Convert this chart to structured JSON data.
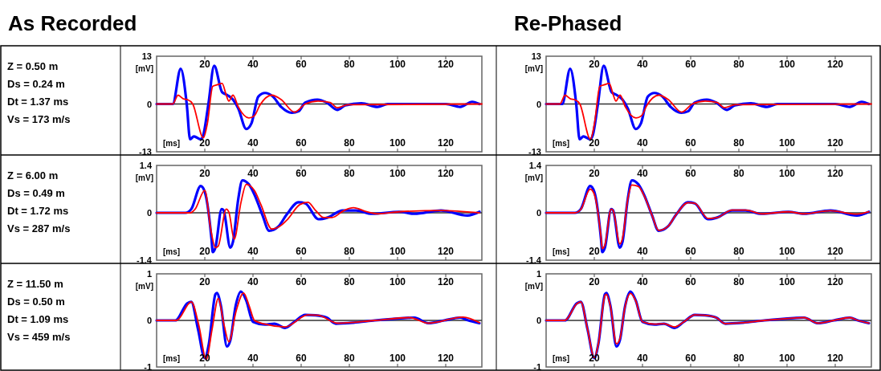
{
  "chart_data": [
    {
      "type": "other",
      "annotations": [
        "Z = 0.50 m",
        "Ds = 0.24 m",
        "Dt = 1.37 ms",
        "Vs = 173 m/s"
      ]
    },
    {
      "type": "line",
      "title": "As Recorded",
      "xlabel": "[ms]",
      "ylabel": "[mV]",
      "xlim": [
        0,
        135
      ],
      "xticks": [
        20,
        40,
        60,
        80,
        100,
        120
      ],
      "x2lim": [
        0,
        135
      ],
      "x2ticks": [
        20,
        40,
        60,
        80,
        100,
        120
      ],
      "ylim": [
        -13,
        13
      ],
      "yticks": [
        -13,
        0,
        13
      ],
      "ref_lines": [
        {
          "axis": "y",
          "value": 0,
          "color": "#333333"
        }
      ],
      "series": [
        {
          "color": "#0000ff",
          "x": [
            0,
            6.7,
            10,
            12.5,
            13.9,
            15.5,
            18.3,
            19.4,
            21.5,
            23.9,
            27.2,
            29.4,
            31.7,
            33.9,
            37.2,
            39.4,
            42.2,
            45,
            48.3,
            51.7,
            56.1,
            58.9,
            61.7,
            66.7,
            70.6,
            75,
            78.3,
            85,
            91.7,
            96,
            120,
            126,
            131,
            134
          ],
          "values": [
            0,
            0,
            9.6,
            0,
            -9.6,
            -8.8,
            -9.6,
            -8.4,
            0,
            10.4,
            3.2,
            2.4,
            1.2,
            -1.2,
            -6.8,
            -5.2,
            2,
            3,
            2,
            -0.8,
            -2.4,
            -2,
            0.4,
            1.2,
            0.4,
            -1.6,
            -0.4,
            0.2,
            -0.8,
            0,
            0,
            -0.8,
            0.6,
            0
          ]
        },
        {
          "color": "#ff0000",
          "x": [
            0,
            6.7,
            8.9,
            11.1,
            12.8,
            15,
            19.4,
            21.1,
            23.3,
            25,
            27.2,
            28.9,
            30,
            31.7,
            33.9,
            38.3,
            40.6,
            42.8,
            47.8,
            51.7,
            57.2,
            61.7,
            67,
            72,
            75,
            79.4,
            135
          ],
          "values": [
            0,
            0,
            2.4,
            1.4,
            1.2,
            0,
            -9.2,
            -5.2,
            4.8,
            5.2,
            5.6,
            2.4,
            0.8,
            2.4,
            -0.8,
            -3.8,
            -3.2,
            -0.4,
            2.4,
            1.2,
            -2.2,
            0,
            0.8,
            0.4,
            -1,
            -0.2,
            0
          ]
        }
      ]
    },
    {
      "type": "line",
      "title": "Re-Phased",
      "xlabel": "[ms]",
      "ylabel": "[mV]",
      "xlim": [
        0,
        135
      ],
      "xticks": [
        20,
        40,
        60,
        80,
        100,
        120
      ],
      "x2lim": [
        0,
        135
      ],
      "x2ticks": [
        20,
        40,
        60,
        80,
        100,
        120
      ],
      "ylim": [
        -13,
        13
      ],
      "yticks": [
        -13,
        0,
        13
      ],
      "ref_lines": [
        {
          "axis": "y",
          "value": 0,
          "color": "#333333"
        }
      ],
      "series": [
        {
          "color": "#0000ff",
          "x": [
            0,
            6.7,
            10,
            12.5,
            13.9,
            15.5,
            18.3,
            19.4,
            21.5,
            23.9,
            27.2,
            29.4,
            31.7,
            33.9,
            37.2,
            39.4,
            42.2,
            45,
            48.3,
            51.7,
            56.1,
            58.9,
            61.7,
            66.7,
            70.6,
            75,
            78.3,
            85,
            91.7,
            96,
            120,
            126,
            131,
            134
          ],
          "values": [
            0,
            0,
            9.6,
            0,
            -9.6,
            -8.8,
            -9.6,
            -8.4,
            0,
            10.4,
            3.2,
            2.4,
            1.2,
            -1.2,
            -6.8,
            -5.2,
            2,
            3,
            2,
            -0.8,
            -2.4,
            -2,
            0.4,
            1.2,
            0.4,
            -1.6,
            -0.4,
            0.2,
            -0.8,
            0,
            0,
            -0.8,
            0.6,
            0
          ]
        },
        {
          "color": "#ff0000",
          "x": [
            0,
            5.7,
            7.9,
            10.1,
            11.8,
            14,
            18.4,
            20.1,
            22.3,
            24,
            26.2,
            27.9,
            29,
            30.7,
            32.9,
            37.3,
            39.6,
            41.8,
            46.8,
            50.7,
            56.2,
            60.7,
            66,
            71,
            74,
            78.4,
            135
          ],
          "values": [
            0,
            0,
            2.4,
            1.4,
            1.2,
            0,
            -9.6,
            -5.2,
            4.8,
            5.2,
            5.6,
            2.4,
            0.8,
            2.4,
            -0.8,
            -3.8,
            -3.2,
            -0.4,
            2.4,
            1.2,
            -2.2,
            0,
            0.8,
            0.4,
            -1,
            -0.2,
            0
          ]
        }
      ]
    },
    {
      "type": "other",
      "annotations": [
        "Z = 6.00 m",
        "Ds = 0.49 m",
        "Dt = 1.72 ms",
        "Vs = 287 m/s"
      ]
    },
    {
      "type": "line",
      "xlabel": "[ms]",
      "ylabel": "[mV]",
      "xlim": [
        0,
        135
      ],
      "xticks": [
        20,
        40,
        60,
        80,
        100,
        120
      ],
      "x2lim": [
        0,
        135
      ],
      "x2ticks": [
        20,
        40,
        60,
        80,
        100,
        120
      ],
      "ylim": [
        -1.4,
        1.4
      ],
      "yticks": [
        -1.4,
        0,
        1.4
      ],
      "ref_lines": [
        {
          "axis": "y",
          "value": 0,
          "color": "#333333"
        }
      ],
      "series": [
        {
          "color": "#0000ff",
          "x": [
            0,
            12,
            14.4,
            18.3,
            20,
            22.8,
            23.3,
            24.4,
            27,
            27.8,
            30.6,
            31.7,
            33.9,
            35.6,
            38.3,
            40.6,
            43.9,
            46.7,
            50.6,
            53.9,
            58.9,
            61.7,
            67.2,
            71,
            77.2,
            82.8,
            89.4,
            100.6,
            107,
            118,
            129,
            134
          ],
          "values": [
            0,
            0,
            0.11,
            0.79,
            0.62,
            -0.78,
            -1.16,
            -1.03,
            0.11,
            0.07,
            -1.03,
            -0.86,
            0.41,
            0.96,
            0.84,
            0.54,
            -0.06,
            -0.53,
            -0.4,
            -0.06,
            0.31,
            0.28,
            -0.19,
            -0.14,
            0.07,
            0.07,
            -0.03,
            0.03,
            -0.03,
            0.07,
            -0.08,
            0.03
          ]
        },
        {
          "color": "#ff0000",
          "x": [
            0,
            14,
            16,
            20,
            22.5,
            24.4,
            25.6,
            28.9,
            30,
            32.2,
            35,
            37.2,
            40.6,
            43.3,
            47.8,
            51.1,
            54.4,
            59.4,
            62.8,
            66,
            69.4,
            72.8,
            77.8,
            81.7,
            87.2,
            91.7,
            100.6,
            118,
            134
          ],
          "values": [
            0,
            0,
            0.11,
            0.66,
            -0.5,
            -1.03,
            -0.98,
            0.11,
            0.02,
            -0.78,
            0.3,
            0.84,
            0.66,
            0.24,
            -0.48,
            -0.4,
            -0.19,
            0.24,
            0.31,
            0.07,
            -0.14,
            -0.14,
            0.07,
            0.15,
            0.03,
            -0.03,
            0.03,
            0.07,
            0
          ]
        }
      ]
    },
    {
      "type": "line",
      "xlabel": "[ms]",
      "ylabel": "[mV]",
      "xlim": [
        0,
        135
      ],
      "xticks": [
        20,
        40,
        60,
        80,
        100,
        120
      ],
      "x2lim": [
        0,
        135
      ],
      "x2ticks": [
        20,
        40,
        60,
        80,
        100,
        120
      ],
      "ylim": [
        -1.4,
        1.4
      ],
      "yticks": [
        -1.4,
        0,
        1.4
      ],
      "ref_lines": [
        {
          "axis": "y",
          "value": 0,
          "color": "#333333"
        }
      ],
      "series": [
        {
          "color": "#0000ff",
          "x": [
            0,
            12,
            14.4,
            18.3,
            20,
            22.8,
            23.3,
            24.4,
            27,
            27.8,
            30.6,
            31.7,
            33.9,
            35.6,
            38.3,
            40.6,
            43.9,
            46.7,
            50.6,
            53.9,
            58.9,
            61.7,
            67.2,
            71,
            77.2,
            82.8,
            89.4,
            100.6,
            107,
            118,
            129,
            134
          ],
          "values": [
            0,
            0,
            0.11,
            0.79,
            0.62,
            -0.78,
            -1.16,
            -1.03,
            0.11,
            0.07,
            -1.03,
            -0.86,
            0.41,
            0.96,
            0.84,
            0.54,
            -0.06,
            -0.53,
            -0.4,
            -0.06,
            0.31,
            0.28,
            -0.19,
            -0.14,
            0.07,
            0.07,
            -0.03,
            0.03,
            -0.03,
            0.07,
            -0.08,
            0.03
          ]
        },
        {
          "color": "#ff0000",
          "x": [
            0,
            12,
            14.4,
            18.3,
            20,
            22.8,
            23.3,
            24.4,
            27,
            27.8,
            30.6,
            31.7,
            33.9,
            35.6,
            38.3,
            40.6,
            43.9,
            46.7,
            50.6,
            53.9,
            58.9,
            61.7,
            67.2,
            71,
            77.2,
            82.8,
            89.4,
            100.6,
            107,
            118,
            129,
            134
          ],
          "values": [
            0,
            0,
            0.1,
            0.7,
            0.55,
            -0.72,
            -1.06,
            -0.95,
            0.11,
            0.07,
            -0.92,
            -0.76,
            0.4,
            0.82,
            0.78,
            0.52,
            -0.06,
            -0.52,
            -0.4,
            -0.06,
            0.3,
            0.28,
            -0.17,
            -0.14,
            0.08,
            0.08,
            -0.03,
            0.03,
            -0.03,
            0.06,
            -0.04,
            0.03
          ]
        }
      ]
    },
    {
      "type": "other",
      "annotations": [
        "Z = 11.50 m",
        "Ds = 0.50 m",
        "Dt = 1.09 ms",
        "Vs = 459 m/s"
      ]
    },
    {
      "type": "line",
      "xlabel": "[ms]",
      "ylabel": "[mV]",
      "xlim": [
        0,
        135
      ],
      "xticks": [
        20,
        40,
        60,
        80,
        100,
        120
      ],
      "x2lim": [
        0,
        135
      ],
      "x2ticks": [
        20,
        40,
        60,
        80,
        100,
        120
      ],
      "ylim": [
        -1,
        1
      ],
      "yticks": [
        -1,
        0,
        1
      ],
      "ref_lines": [
        {
          "axis": "y",
          "value": 0,
          "color": "#333333"
        }
      ],
      "series": [
        {
          "color": "#0000ff",
          "x": [
            0,
            7.8,
            12.8,
            14.4,
            17.2,
            20,
            21.7,
            24.4,
            25,
            26.7,
            29.2,
            30.6,
            32.8,
            35,
            37.2,
            40,
            45,
            48.9,
            53.3,
            57.2,
            61.7,
            66,
            70.6,
            74.4,
            81.7,
            90.6,
            102.8,
            107,
            112.8,
            119.4,
            126,
            129.4,
            134
          ],
          "values": [
            0,
            0,
            0.37,
            0.4,
            -0.19,
            -0.81,
            -0.5,
            0.56,
            0.59,
            0.31,
            -0.56,
            -0.43,
            0.31,
            0.62,
            0.43,
            -0.03,
            -0.09,
            -0.07,
            -0.16,
            -0.03,
            0.12,
            0.11,
            0.06,
            -0.07,
            -0.05,
            0,
            0.05,
            0.06,
            -0.06,
            0,
            0.06,
            0,
            -0.06
          ]
        },
        {
          "color": "#ff0000",
          "x": [
            0,
            8.3,
            14.4,
            17.5,
            20.6,
            23,
            25.6,
            28,
            30,
            33,
            36.1,
            38.5,
            40.6,
            45,
            53.3,
            62.8,
            67.2,
            75,
            90.6,
            105,
            112.8,
            127.2,
            134
          ],
          "values": [
            0,
            0,
            0.4,
            -0.1,
            -0.84,
            -0.2,
            0.47,
            -0.1,
            -0.46,
            0.2,
            0.59,
            0.3,
            0,
            -0.08,
            -0.14,
            0.12,
            0.11,
            -0.06,
            0,
            0.06,
            -0.06,
            0.07,
            -0.05
          ]
        }
      ]
    },
    {
      "type": "line",
      "xlabel": "[ms]",
      "ylabel": "[mV]",
      "xlim": [
        0,
        135
      ],
      "xticks": [
        20,
        40,
        60,
        80,
        100,
        120
      ],
      "x2lim": [
        0,
        135
      ],
      "x2ticks": [
        20,
        40,
        60,
        80,
        100,
        120
      ],
      "ylim": [
        -1,
        1
      ],
      "yticks": [
        -1,
        0,
        1
      ],
      "ref_lines": [
        {
          "axis": "y",
          "value": 0,
          "color": "#333333"
        }
      ],
      "series": [
        {
          "color": "#0000ff",
          "x": [
            0,
            7.8,
            12.8,
            14.4,
            17.2,
            20,
            21.7,
            24.4,
            25,
            26.7,
            29.2,
            30.6,
            32.8,
            35,
            37.2,
            40,
            45,
            48.9,
            53.3,
            57.2,
            61.7,
            66,
            70.6,
            74.4,
            81.7,
            90.6,
            102.8,
            107,
            112.8,
            119.4,
            126,
            129.4,
            134
          ],
          "values": [
            0,
            0,
            0.37,
            0.4,
            -0.19,
            -0.81,
            -0.5,
            0.56,
            0.59,
            0.31,
            -0.56,
            -0.43,
            0.31,
            0.62,
            0.43,
            -0.03,
            -0.09,
            -0.07,
            -0.16,
            -0.03,
            0.12,
            0.11,
            0.06,
            -0.07,
            -0.05,
            0,
            0.05,
            0.06,
            -0.06,
            0,
            0.06,
            0,
            -0.06
          ]
        },
        {
          "color": "#ff0000",
          "x": [
            0,
            7.8,
            12.8,
            14.4,
            17.2,
            20,
            21.7,
            24.4,
            25,
            26.7,
            29.2,
            30.6,
            32.8,
            35,
            37.2,
            40,
            45,
            48.9,
            53.3,
            57.2,
            61.7,
            66,
            70.6,
            74.4,
            81.7,
            90.6,
            102.8,
            107,
            112.8,
            119.4,
            126,
            129.4,
            134
          ],
          "values": [
            0,
            0,
            0.36,
            0.4,
            -0.19,
            -0.8,
            -0.5,
            0.53,
            0.56,
            0.3,
            -0.5,
            -0.4,
            0.3,
            0.58,
            0.42,
            -0.03,
            -0.08,
            -0.07,
            -0.14,
            -0.03,
            0.12,
            0.11,
            0.06,
            -0.07,
            -0.05,
            0,
            0.05,
            0.06,
            -0.06,
            0,
            0.06,
            0,
            -0.06
          ]
        }
      ]
    }
  ]
}
